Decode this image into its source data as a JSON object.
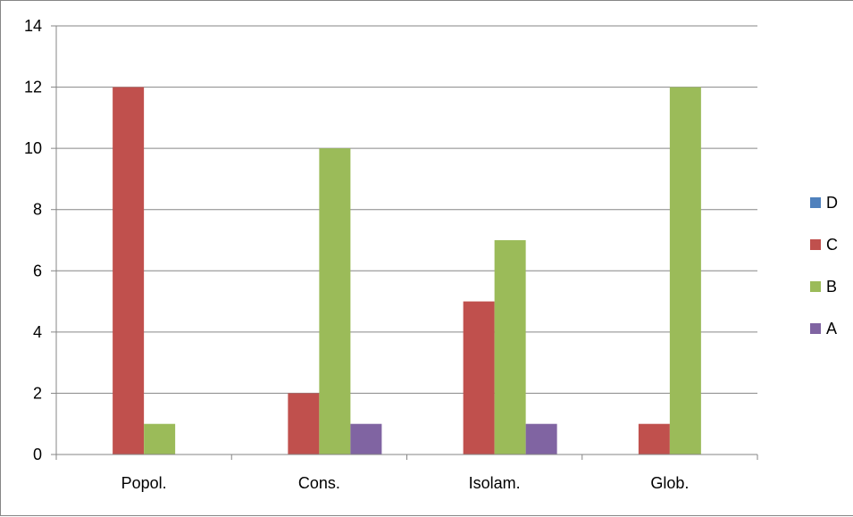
{
  "chart_data": {
    "type": "bar",
    "title": "",
    "xlabel": "",
    "ylabel": "",
    "categories": [
      "Popol.",
      "Cons.",
      "Isolam.",
      "Glob."
    ],
    "ylim": [
      0,
      14
    ],
    "yticks": [
      0,
      2,
      4,
      6,
      8,
      10,
      12,
      14
    ],
    "grid": true,
    "legend_position": "right",
    "legend_order": [
      "D",
      "C",
      "B",
      "A"
    ],
    "series": [
      {
        "name": "D",
        "color": "#4f81bd",
        "values": [
          0,
          0,
          0,
          0
        ]
      },
      {
        "name": "C",
        "color": "#c0504d",
        "values": [
          12,
          2,
          5,
          1
        ]
      },
      {
        "name": "B",
        "color": "#9bbb59",
        "values": [
          1,
          10,
          7,
          12
        ]
      },
      {
        "name": "A",
        "color": "#8064a2",
        "values": [
          0,
          1,
          1,
          0
        ]
      }
    ]
  }
}
